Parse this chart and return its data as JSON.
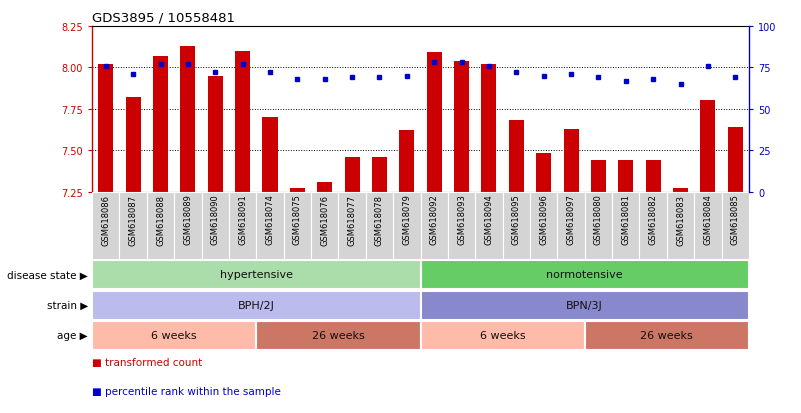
{
  "title": "GDS3895 / 10558481",
  "samples": [
    "GSM618086",
    "GSM618087",
    "GSM618088",
    "GSM618089",
    "GSM618090",
    "GSM618091",
    "GSM618074",
    "GSM618075",
    "GSM618076",
    "GSM618077",
    "GSM618078",
    "GSM618079",
    "GSM618092",
    "GSM618093",
    "GSM618094",
    "GSM618095",
    "GSM618096",
    "GSM618097",
    "GSM618080",
    "GSM618081",
    "GSM618082",
    "GSM618083",
    "GSM618084",
    "GSM618085"
  ],
  "bar_values": [
    8.02,
    7.82,
    8.07,
    8.13,
    7.95,
    8.1,
    7.7,
    7.27,
    7.31,
    7.46,
    7.46,
    7.62,
    8.09,
    8.04,
    8.02,
    7.68,
    7.48,
    7.63,
    7.44,
    7.44,
    7.44,
    7.27,
    7.8,
    7.64
  ],
  "percentile_values": [
    76,
    71,
    77,
    77,
    72,
    77,
    72,
    68,
    68,
    69,
    69,
    70,
    78,
    78,
    76,
    72,
    70,
    71,
    69,
    67,
    68,
    65,
    76,
    69
  ],
  "bar_color": "#cc0000",
  "dot_color": "#0000cc",
  "ylim_left": [
    7.25,
    8.25
  ],
  "ylim_right": [
    0,
    100
  ],
  "yticks_left": [
    7.25,
    7.5,
    7.75,
    8.0,
    8.25
  ],
  "yticks_right": [
    0,
    25,
    50,
    75,
    100
  ],
  "gridlines": [
    7.5,
    7.75,
    8.0
  ],
  "ds_hyp_color": "#aaddaa",
  "ds_nor_color": "#66cc66",
  "st_bph_color": "#bbbbee",
  "st_bpn_color": "#8888cc",
  "age_light_color": "#ffbbaa",
  "age_dark_color": "#cc7766",
  "xtick_bg": "#d4d4d4",
  "legend_bar": "transformed count",
  "legend_dot": "percentile rank within the sample",
  "bar_width": 0.55,
  "n": 24,
  "fig_width": 8.01,
  "fig_height": 4.14,
  "dpi": 100
}
